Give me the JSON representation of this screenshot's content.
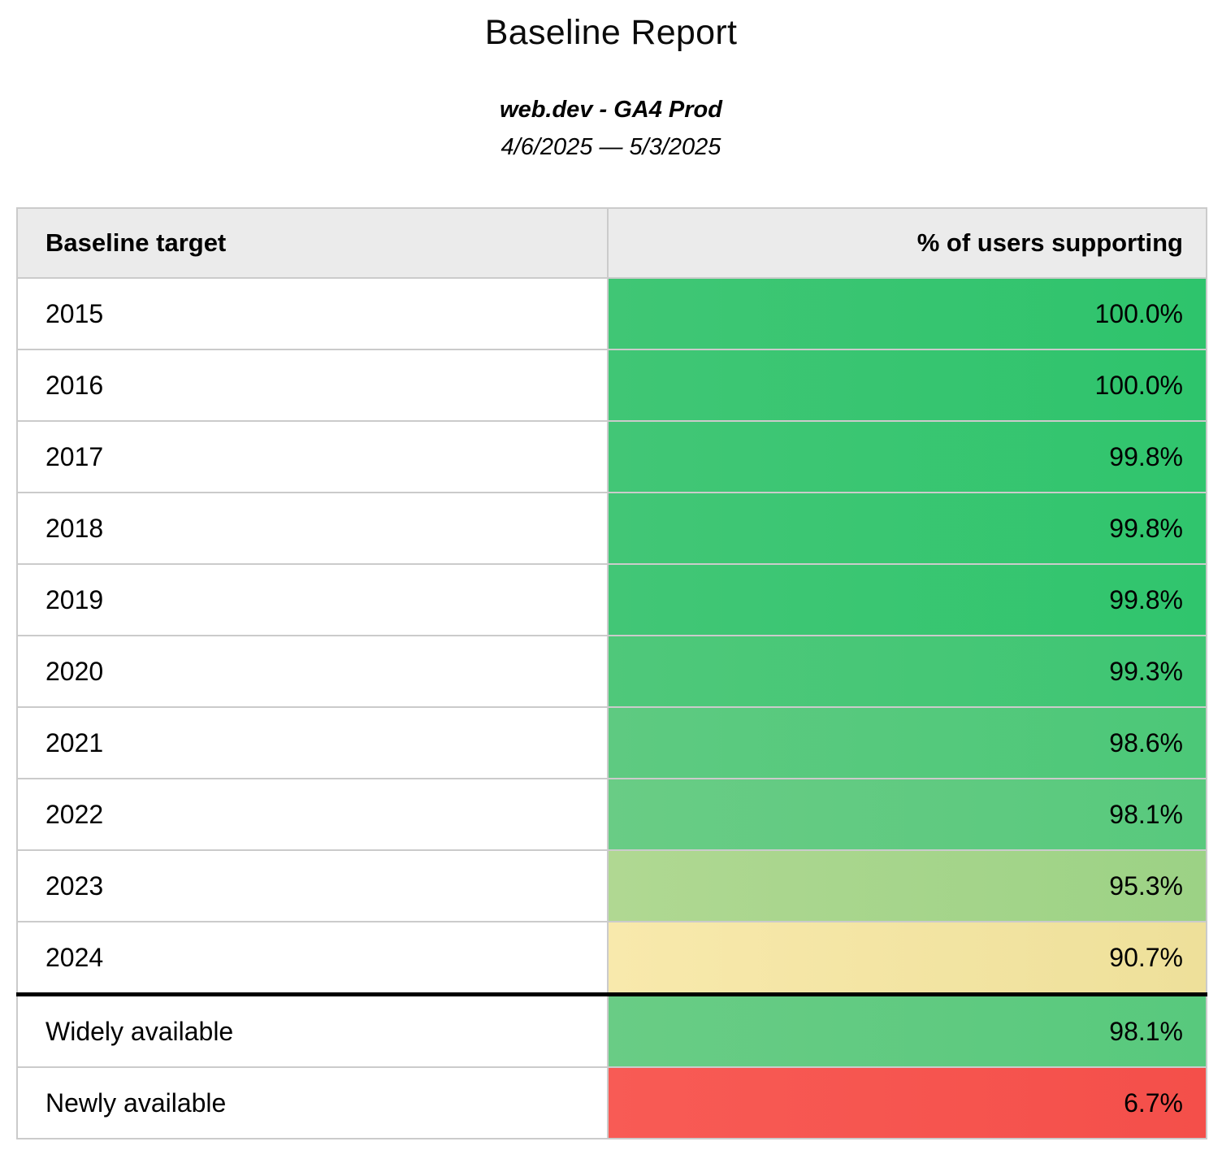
{
  "report": {
    "title": "Baseline Report",
    "property": "web.dev - GA4 Prod",
    "date_range": "4/6/2025 — 5/3/2025"
  },
  "table": {
    "columns": [
      "Baseline target",
      "% of users supporting"
    ],
    "rows": [
      {
        "target": "2015",
        "value": "100.0%",
        "color": {
          "left": "#40c675",
          "right": "#2ec46c"
        }
      },
      {
        "target": "2016",
        "value": "100.0%",
        "color": {
          "left": "#40c675",
          "right": "#2ec46c"
        }
      },
      {
        "target": "2017",
        "value": "99.8%",
        "color": {
          "left": "#42c676",
          "right": "#30c56d"
        }
      },
      {
        "target": "2018",
        "value": "99.8%",
        "color": {
          "left": "#42c676",
          "right": "#30c56d"
        }
      },
      {
        "target": "2019",
        "value": "99.8%",
        "color": {
          "left": "#42c676",
          "right": "#30c56d"
        }
      },
      {
        "target": "2020",
        "value": "99.3%",
        "color": {
          "left": "#4fc87a",
          "right": "#3ec673"
        }
      },
      {
        "target": "2021",
        "value": "98.6%",
        "color": {
          "left": "#5eca81",
          "right": "#4cc878"
        }
      },
      {
        "target": "2022",
        "value": "98.1%",
        "color": {
          "left": "#69cc85",
          "right": "#58c97d"
        }
      },
      {
        "target": "2023",
        "value": "95.3%",
        "color": {
          "left": "#b0d892",
          "right": "#9cd285"
        }
      },
      {
        "target": "2024",
        "value": "90.7%",
        "color": {
          "left": "#f8e9ac",
          "right": "#eee09a"
        }
      },
      {
        "target": "Widely available",
        "value": "98.1%",
        "color": {
          "left": "#69cc85",
          "right": "#58c97d"
        }
      },
      {
        "target": "Newly available",
        "value": "6.7%",
        "color": {
          "left": "#f85b55",
          "right": "#f44f4a"
        }
      }
    ]
  },
  "colors": {
    "header_background": "#ebebeb",
    "grid_border": "#cbcbcb",
    "section_border": "#000000",
    "green_full": "#37c570",
    "green_light": "#a6d58c",
    "yellow": "#f3e4a3",
    "red": "#f6554f"
  },
  "chart_data": {
    "type": "table",
    "title": "Baseline Report",
    "subtitle": "web.dev - GA4 Prod",
    "date_range": "4/6/2025 — 5/3/2025",
    "columns": [
      "Baseline target",
      "% of users supporting"
    ],
    "categories": [
      "2015",
      "2016",
      "2017",
      "2018",
      "2019",
      "2020",
      "2021",
      "2022",
      "2023",
      "2024",
      "Widely available",
      "Newly available"
    ],
    "values": [
      100.0,
      100.0,
      99.8,
      99.8,
      99.8,
      99.3,
      98.6,
      98.1,
      95.3,
      90.7,
      98.1,
      6.7
    ],
    "value_format": "percent",
    "layout_hints": "two-column report table; percent column conditionally colored on a red-yellow-green scale; thick black rule separates year rows (2015-2024) from summary rows (Widely available, Newly available)"
  }
}
